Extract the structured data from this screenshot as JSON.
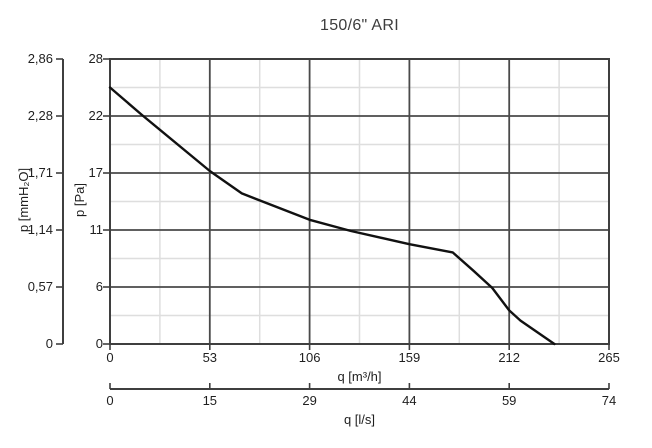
{
  "title": "150/6\" ARI",
  "colors": {
    "frame": "#3f3f3f",
    "major_grid": "#4a4a4a",
    "minor_grid": "#dedede",
    "curve": "#111111",
    "text": "#1f1f1f"
  },
  "chart_data": {
    "type": "line",
    "title": "150/6\" ARI",
    "grid": {
      "major": true,
      "minor": true
    },
    "legend": "none",
    "axes": {
      "y_mmh2o": {
        "label": "p [mmH₂O]",
        "ticks": [
          "2,86",
          "2,28",
          "1,71",
          "1,14",
          "0,57",
          "0"
        ],
        "range": [
          0,
          2.86
        ]
      },
      "y_pa": {
        "label": "p [Pa]",
        "ticks": [
          "28",
          "22",
          "17",
          "11",
          "6",
          "0"
        ],
        "range": [
          0,
          28
        ]
      },
      "x_m3h": {
        "label": "q [m³/h]",
        "ticks": [
          "0",
          "53",
          "106",
          "159",
          "212",
          "265"
        ],
        "range": [
          0,
          265
        ]
      },
      "x_ls": {
        "label": "q [l/s]",
        "ticks": [
          "0",
          "15",
          "29",
          "44",
          "59",
          "74"
        ],
        "range": [
          0,
          74
        ]
      }
    },
    "series": [
      {
        "name": "pressure-flow-curve",
        "x_unit": "m³/h",
        "y_unit": "Pa",
        "points": [
          [
            0,
            25.2
          ],
          [
            17,
            22.5
          ],
          [
            53,
            17.0
          ],
          [
            70,
            14.8
          ],
          [
            106,
            12.2
          ],
          [
            128,
            11.1
          ],
          [
            159,
            9.8
          ],
          [
            182,
            9.0
          ],
          [
            193,
            7.2
          ],
          [
            203,
            5.5
          ],
          [
            212,
            3.3
          ],
          [
            218,
            2.3
          ],
          [
            236,
            0
          ]
        ]
      }
    ]
  }
}
